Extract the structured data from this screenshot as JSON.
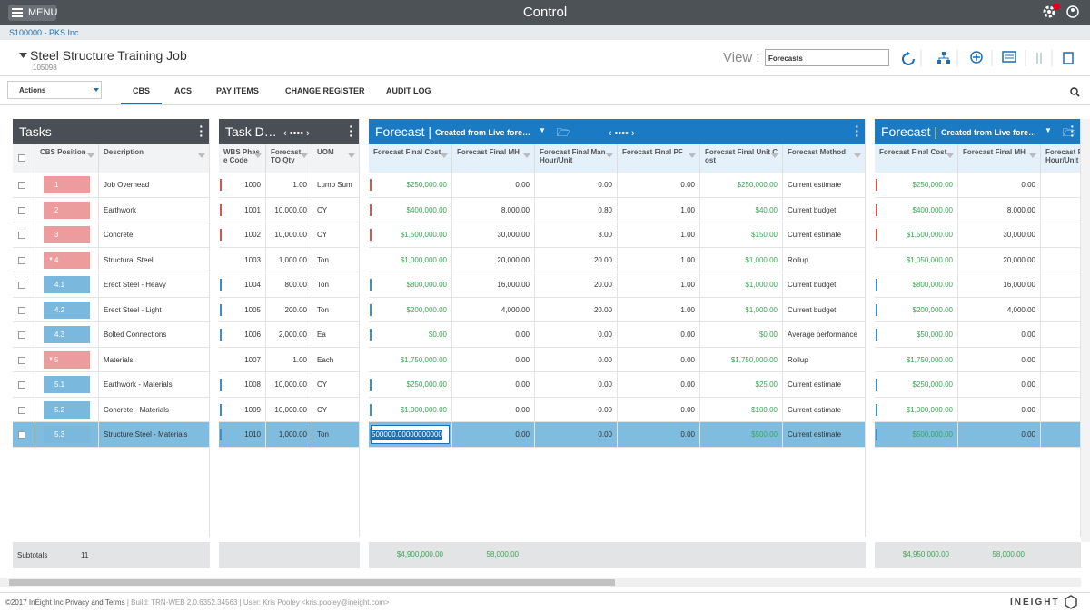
{
  "header": {
    "menu": "MENU",
    "title": "Control"
  },
  "breadcrumb": "S100000 - PKS Inc",
  "job": {
    "title": "Steel Structure Training Job",
    "id": "105098"
  },
  "view": {
    "label": "View :",
    "selected": "Forecasts"
  },
  "actions": "Actions",
  "tabs": [
    "CBS",
    "ACS",
    "PAY ITEMS",
    "CHANGE REGISTER",
    "AUDIT LOG"
  ],
  "tasks": {
    "title": "Tasks",
    "columns": [
      "CBS Position",
      "Description"
    ],
    "rows": [
      [
        "1",
        "Job Overhead"
      ],
      [
        "2",
        "Earthwork"
      ],
      [
        "3",
        "Concrete"
      ],
      [
        "4",
        "Structural Steel"
      ],
      [
        "4.1",
        "Erect Steel - Heavy"
      ],
      [
        "4.2",
        "Erect Steel - Light"
      ],
      [
        "4.3",
        "Bolted Connections"
      ],
      [
        "5",
        "Materials"
      ],
      [
        "5.1",
        "Earthwork - Materials"
      ],
      [
        "5.2",
        "Concrete - Materials"
      ],
      [
        "5.3",
        "Structure Steel - Materials"
      ]
    ],
    "subtotal_label": "Subtotals",
    "subtotal_count": "11"
  },
  "task_details": {
    "title": "Task Details",
    "columns": [
      "WBS Phase Code",
      "Forecast TO Qty",
      "UOM"
    ],
    "rows": [
      [
        "1000",
        "1.00",
        "Lump Sum"
      ],
      [
        "1001",
        "10,000.00",
        "CY"
      ],
      [
        "1002",
        "10,000.00",
        "CY"
      ],
      [
        "1003",
        "1,000.00",
        "Ton"
      ],
      [
        "1004",
        "800.00",
        "Ton"
      ],
      [
        "1005",
        "200.00",
        "Ton"
      ],
      [
        "1006",
        "2,000.00",
        "Ea"
      ],
      [
        "1007",
        "1.00",
        "Each"
      ],
      [
        "1008",
        "10,000.00",
        "CY"
      ],
      [
        "1009",
        "10,000.00",
        "CY"
      ],
      [
        "1010",
        "1,000.00",
        "Ton"
      ]
    ]
  },
  "forecasts": [
    {
      "title": "Forecast |",
      "subtitle": "Created from Live forecast",
      "columns": [
        "Forecast Final Cost",
        "Forecast Final MH",
        "Forecast Final Man Hour/Unit",
        "Forecast Final PF",
        "Forecast Final Unit Cost",
        "Forecast Method"
      ],
      "rows": [
        [
          "$250,000.00",
          "0.00",
          "0.00",
          "0.00",
          "$250,000.00",
          "Current estimate"
        ],
        [
          "$400,000.00",
          "8,000.00",
          "0.80",
          "1.00",
          "$40.00",
          "Current budget"
        ],
        [
          "$1,500,000.00",
          "30,000.00",
          "3.00",
          "1.00",
          "$150.00",
          "Current estimate"
        ],
        [
          "$1,000,000.00",
          "20,000.00",
          "20.00",
          "1.00",
          "$1,000.00",
          "Rollup"
        ],
        [
          "$800,000.00",
          "16,000.00",
          "20.00",
          "1.00",
          "$1,000.00",
          "Current budget"
        ],
        [
          "$200,000.00",
          "4,000.00",
          "20.00",
          "1.00",
          "$1,000.00",
          "Current budget"
        ],
        [
          "$0.00",
          "0.00",
          "0.00",
          "0.00",
          "$0.00",
          "Average performance"
        ],
        [
          "$1,750,000.00",
          "0.00",
          "0.00",
          "0.00",
          "$1,750,000.00",
          "Rollup"
        ],
        [
          "$250,000.00",
          "0.00",
          "0.00",
          "0.00",
          "$25.00",
          "Current estimate"
        ],
        [
          "$1,000,000.00",
          "0.00",
          "0.00",
          "0.00",
          "$100.00",
          "Current estimate"
        ],
        [
          "500000.00000000000",
          "0.00",
          "0.00",
          "0.00",
          "$500.00",
          "Current estimate"
        ]
      ],
      "subtotals": [
        "$4,900,000.00",
        "58,000.00"
      ]
    },
    {
      "title": "Forecast |",
      "subtitle": "Created from Live forecast",
      "columns": [
        "Forecast Final Cost",
        "Forecast Final MH",
        "Forecast Final Man Hour/Unit"
      ],
      "rows": [
        [
          "$250,000.00",
          "0.00"
        ],
        [
          "$400,000.00",
          "8,000.00"
        ],
        [
          "$1,500,000.00",
          "30,000.00"
        ],
        [
          "$1,050,000.00",
          "20,000.00"
        ],
        [
          "$800,000.00",
          "16,000.00"
        ],
        [
          "$200,000.00",
          "4,000.00"
        ],
        [
          "$50,000.00",
          "0.00"
        ],
        [
          "$1,750,000.00",
          "0.00"
        ],
        [
          "$250,000.00",
          "0.00"
        ],
        [
          "$1,000,000.00",
          "0.00"
        ],
        [
          "$500,000.00",
          "0.00"
        ]
      ],
      "subtotals": [
        "$4,950,000.00",
        "58,000.00"
      ]
    }
  ],
  "footer": {
    "copyright": "©2017 InEight Inc Privacy and Terms",
    "build": "| Build: TRN-WEB 2.0.6352.34563 | User: Kris Pooley <kris.pooley@ineight.com>",
    "brand": "INEIGHT"
  }
}
